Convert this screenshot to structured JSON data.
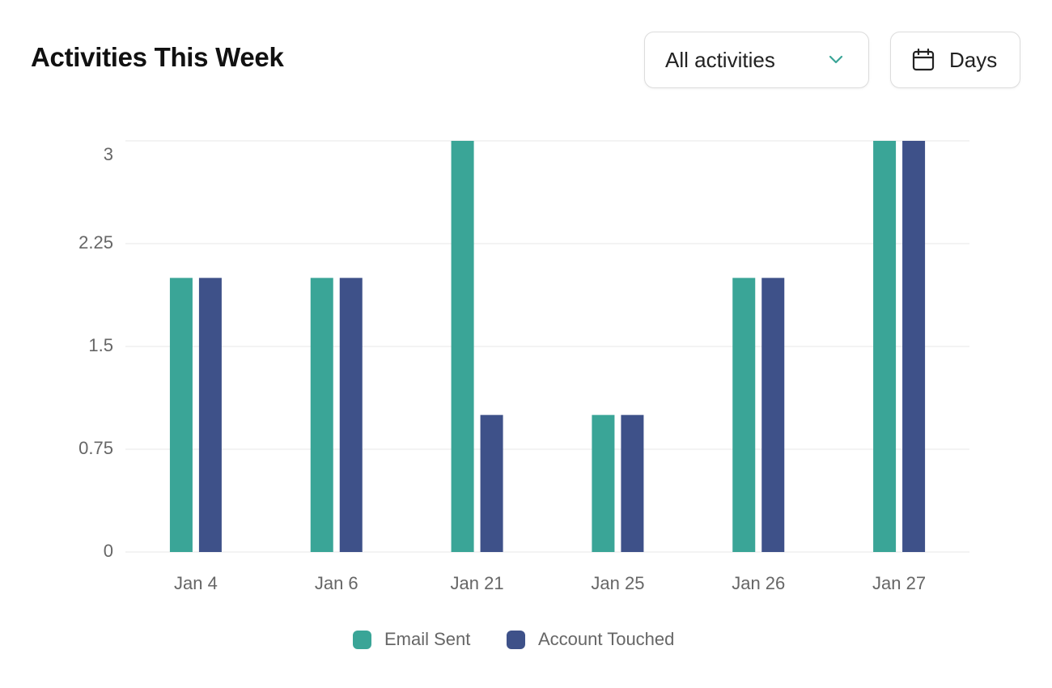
{
  "header": {
    "title": "Activities This Week"
  },
  "controls": {
    "filter": "All activities",
    "period": "Days"
  },
  "chart_data": {
    "type": "bar",
    "categories": [
      "Jan 4",
      "Jan 6",
      "Jan 21",
      "Jan 25",
      "Jan 26",
      "Jan 27"
    ],
    "series": [
      {
        "name": "Email Sent",
        "color": "#3aa597",
        "values": [
          2,
          2,
          3,
          1,
          2,
          3
        ]
      },
      {
        "name": "Account Touched",
        "color": "#3e5189",
        "values": [
          2,
          2,
          1,
          1,
          2,
          3
        ]
      }
    ],
    "ylim": [
      0,
      3
    ],
    "yticks": [
      0,
      0.75,
      1.5,
      2.25,
      3
    ],
    "grid": true
  }
}
